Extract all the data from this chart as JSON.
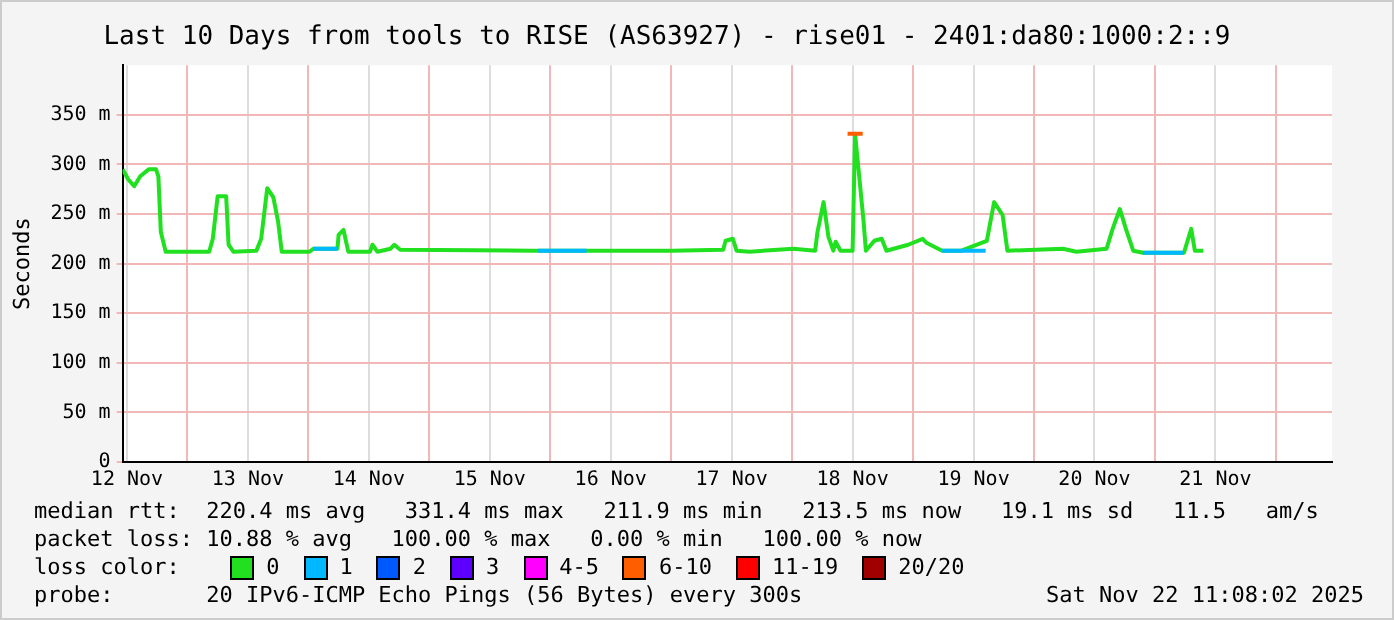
{
  "chart_data": {
    "type": "line",
    "title": "Last 10 Days from tools to RISE (AS63927) - rise01 - 2401:da80:1000:2::9",
    "ylabel": "Seconds",
    "legend_title": "loss color:",
    "legend": "bottom",
    "grid": true,
    "marker": "none",
    "line_style": "solid",
    "xlim": [
      "2025-11-12T11:08",
      "2025-11-22T11:08"
    ],
    "xticks": [
      {
        "value": "2025-11-12T12:00",
        "label": "12 Nov"
      },
      {
        "value": "2025-11-13",
        "label": null
      },
      {
        "value": "2025-11-13T12:00",
        "label": "13 Nov"
      },
      {
        "value": "2025-11-14",
        "label": null
      },
      {
        "value": "2025-11-14T12:00",
        "label": "14 Nov"
      },
      {
        "value": "2025-11-15",
        "label": null
      },
      {
        "value": "2025-11-15T12:00",
        "label": "15 Nov"
      },
      {
        "value": "2025-11-16",
        "label": null
      },
      {
        "value": "2025-11-16T12:00",
        "label": "16 Nov"
      },
      {
        "value": "2025-11-17",
        "label": null
      },
      {
        "value": "2025-11-17T12:00",
        "label": "17 Nov"
      },
      {
        "value": "2025-11-18",
        "label": null
      },
      {
        "value": "2025-11-18T12:00",
        "label": "18 Nov"
      },
      {
        "value": "2025-11-19",
        "label": null
      },
      {
        "value": "2025-11-19T12:00",
        "label": "19 Nov"
      },
      {
        "value": "2025-11-20",
        "label": null
      },
      {
        "value": "2025-11-20T12:00",
        "label": "20 Nov"
      },
      {
        "value": "2025-11-21",
        "label": null
      },
      {
        "value": "2025-11-21T12:00",
        "label": "21 Nov"
      },
      {
        "value": "2025-11-22",
        "label": null
      }
    ],
    "ylim": [
      0,
      400
    ],
    "yticks": [
      {
        "value": 0,
        "label": "0"
      },
      {
        "value": 50,
        "label": "50 m"
      },
      {
        "value": 100,
        "label": "100 m"
      },
      {
        "value": 150,
        "label": "150 m"
      },
      {
        "value": 200,
        "label": "200 m"
      },
      {
        "value": 250,
        "label": "250 m"
      },
      {
        "value": 300,
        "label": "300 m"
      },
      {
        "value": 350,
        "label": "350 m"
      }
    ],
    "series": [
      {
        "name": "0",
        "color": "#20e020",
        "x": [
          "2025-11-12T11:10",
          "2025-11-12T12:14",
          "2025-11-12T13:26",
          "2025-11-12T14:38",
          "2025-11-12T16:19",
          "2025-11-12T17:46",
          "2025-11-12T18:14",
          "2025-11-12T18:43",
          "2025-11-12T19:41",
          "2025-11-13T04:19",
          "2025-11-13T05:02",
          "2025-11-13T06:00",
          "2025-11-13T07:41",
          "2025-11-13T08:10",
          "2025-11-13T09:07",
          "2025-11-13T13:41",
          "2025-11-13T14:38",
          "2025-11-13T15:50",
          "2025-11-13T17:02",
          "2025-11-13T18:00",
          "2025-11-13T18:43",
          "2025-11-14T00:14",
          "2025-11-14T00:58",
          "2025-11-14T05:46",
          "2025-11-14T06:00",
          "2025-11-14T06:58",
          "2025-11-14T07:55",
          "2025-11-14T12:14",
          "2025-11-14T12:43",
          "2025-11-14T13:41",
          "2025-11-14T16:19",
          "2025-11-14T17:02",
          "2025-11-14T18:14",
          "2025-11-15T20:24",
          "2025-11-17T00:14",
          "2025-11-17T10:19",
          "2025-11-17T10:48",
          "2025-11-17T12:14",
          "2025-11-17T12:58",
          "2025-11-17T15:36",
          "2025-11-18T00:14",
          "2025-11-18T04:34",
          "2025-11-18T05:02",
          "2025-11-18T06:14",
          "2025-11-18T07:12",
          "2025-11-18T08:10",
          "2025-11-18T08:38",
          "2025-11-18T09:36",
          "2025-11-18T12:00",
          "2025-11-18T12:29",
          "2025-11-18T14:10",
          "2025-11-18T14:38",
          "2025-11-18T16:19",
          "2025-11-18T17:46",
          "2025-11-18T18:43",
          "2025-11-18T23:02",
          "2025-11-19T01:55",
          "2025-11-19T02:38",
          "2025-11-19T05:46",
          "2025-11-19T09:36",
          "2025-11-19T14:38",
          "2025-11-19T16:05",
          "2025-11-19T17:46",
          "2025-11-19T18:43",
          "2025-11-20T05:46",
          "2025-11-20T08:24",
          "2025-11-20T14:24",
          "2025-11-20T15:36",
          "2025-11-20T17:02",
          "2025-11-20T18:14",
          "2025-11-20T19:41",
          "2025-11-20T21:36",
          "2025-11-21T05:46",
          "2025-11-21T06:14",
          "2025-11-21T07:12",
          "2025-11-21T07:55",
          "2025-11-21T09:36"
        ],
        "values": [
          295,
          285,
          278,
          288,
          295,
          295,
          288,
          232,
          212,
          212,
          225,
          268,
          268,
          219,
          212,
          213,
          225,
          276,
          267,
          242,
          212,
          212,
          215,
          215,
          229,
          234,
          212,
          212,
          219,
          212,
          215,
          219,
          214,
          213,
          213,
          214,
          223,
          225,
          213,
          212,
          215,
          213,
          232,
          262,
          227,
          213,
          222,
          213,
          213,
          331,
          243,
          213,
          223,
          225,
          213,
          219,
          225,
          221,
          213,
          213,
          223,
          262,
          249,
          213,
          215,
          212,
          215,
          235,
          255,
          235,
          213,
          211,
          211,
          219,
          235,
          213,
          213
        ]
      },
      {
        "name": "1",
        "color": "#00b8ff",
        "x": [
          "2025-11-14T00:58",
          "2025-11-14T05:46",
          "2025-11-14T06:00",
          "2025-11-15T21:36",
          "2025-11-16T07:12",
          "2025-11-16T07:26",
          "2025-11-19T05:46",
          "2025-11-19T14:24",
          "2025-11-19T14:38",
          "2025-11-20T21:36",
          "2025-11-21T05:46"
        ],
        "values": [
          215,
          215,
          null,
          213,
          213,
          null,
          213,
          213,
          null,
          211,
          211
        ]
      },
      {
        "name": "2",
        "color": "#0059ff"
      },
      {
        "name": "3",
        "color": "#5e00ff"
      },
      {
        "name": "4-5",
        "color": "#ff00ff"
      },
      {
        "name": "6-10",
        "color": "#ff5e00",
        "x": [
          "2025-11-18T11:00",
          "2025-11-18T14:00"
        ],
        "values": [
          331,
          331
        ]
      },
      {
        "name": "11-19",
        "color": "#ff0000"
      },
      {
        "name": "20/20",
        "color": "#a10000"
      }
    ],
    "annotations": [
      "median rtt:  220.4 ms avg   331.4 ms max   211.9 ms min   213.5 ms now   19.1 ms sd   11.5   am/s",
      "packet loss: 10.88 % avg   100.00 % max   0.00 % min   100.00 % now",
      "probe:       20 IPv6-ICMP Echo Pings (56 Bytes) every 300s",
      "Sat Nov 22 11:08:02 2025"
    ]
  }
}
